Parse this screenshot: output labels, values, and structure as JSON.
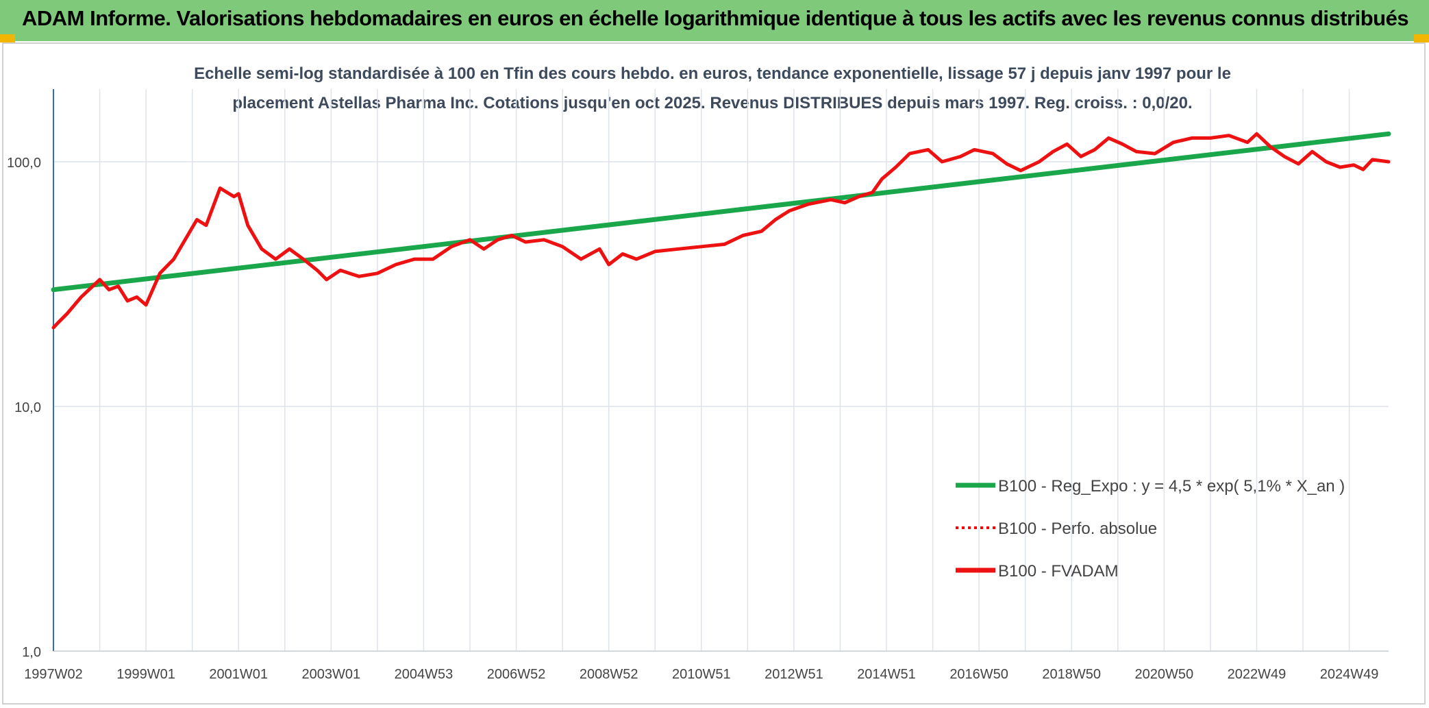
{
  "header": {
    "title": "ADAM Informe. Valorisations hebdomadaires en euros en échelle logarithmique identique à tous les actifs avec les revenus connus distribués"
  },
  "colors": {
    "header_bg": "#7fc97a",
    "corner_accent": "#f2b600",
    "trend_line": "#1aa64a",
    "perf_line": "#ff0000",
    "fvadam_line": "#ee1111"
  },
  "chart_data": {
    "type": "line",
    "title_line1": "Echelle semi-log standardisée à 100 en Tfin des cours hebdo. en euros, tendance exponentielle, lissage 57 j depuis janv 1997 pour le",
    "title_line2": "placement Astellas Pharma Inc. Cotations jusqu'en oct 2025. Revenus DISTRIBUES depuis mars 1997. Reg. croiss. : 0,0/20.",
    "y_scale": "log",
    "ylim": [
      1,
      180
    ],
    "xlim": [
      1997.0,
      2025.85
    ],
    "grid": true,
    "legend_position": "right-lower",
    "y_ticks": [
      {
        "value": 1,
        "label": "1,0"
      },
      {
        "value": 10,
        "label": "10,0"
      },
      {
        "value": 100,
        "label": "100,0"
      }
    ],
    "x_ticks": [
      {
        "value": 1997.0,
        "label": "1997W02"
      },
      {
        "value": 1999.0,
        "label": "1999W01"
      },
      {
        "value": 2001.0,
        "label": "2001W01"
      },
      {
        "value": 2003.0,
        "label": "2003W01"
      },
      {
        "value": 2005.0,
        "label": "2004W53"
      },
      {
        "value": 2007.0,
        "label": "2006W52"
      },
      {
        "value": 2009.0,
        "label": "2008W52"
      },
      {
        "value": 2011.0,
        "label": "2010W51"
      },
      {
        "value": 2013.0,
        "label": "2012W51"
      },
      {
        "value": 2015.0,
        "label": "2014W51"
      },
      {
        "value": 2017.0,
        "label": "2016W50"
      },
      {
        "value": 2019.0,
        "label": "2018W50"
      },
      {
        "value": 2021.0,
        "label": "2020W50"
      },
      {
        "value": 2023.0,
        "label": "2022W49"
      },
      {
        "value": 2025.0,
        "label": "2024W49"
      }
    ],
    "legend": [
      {
        "label": "B100 - Reg_Expo : y = 4,5 * exp( 5,1% *  X_an )",
        "style": "solid-green"
      },
      {
        "label": "B100 - Perfo. absolue",
        "style": "dotted-red"
      },
      {
        "label": "B100 - FVADAM",
        "style": "solid-red"
      }
    ],
    "series": [
      {
        "name": "B100 - Reg_Expo : y = 4,5 * exp( 5,1% *  X_an )",
        "x": [
          1997.0,
          2025.85
        ],
        "values": [
          30.0,
          130.0
        ]
      },
      {
        "name": "B100 - FVADAM",
        "x": [
          1997.0,
          1997.1,
          1997.3,
          1997.6,
          1998.0,
          1998.2,
          1998.4,
          1998.6,
          1998.8,
          1999.0,
          1999.3,
          1999.6,
          1999.9,
          2000.1,
          2000.3,
          2000.6,
          2000.9,
          2001.0,
          2001.2,
          2001.5,
          2001.8,
          2002.1,
          2002.4,
          2002.7,
          2002.9,
          2003.2,
          2003.6,
          2004.0,
          2004.4,
          2004.8,
          2005.2,
          2005.6,
          2006.0,
          2006.3,
          2006.6,
          2006.9,
          2007.2,
          2007.6,
          2008.0,
          2008.4,
          2008.8,
          2009.0,
          2009.3,
          2009.6,
          2010.0,
          2010.5,
          2011.0,
          2011.5,
          2011.9,
          2012.3,
          2012.6,
          2012.9,
          2013.3,
          2013.8,
          2014.1,
          2014.4,
          2014.7,
          2014.9,
          2015.2,
          2015.5,
          2015.9,
          2016.2,
          2016.6,
          2016.9,
          2017.3,
          2017.6,
          2017.9,
          2018.3,
          2018.6,
          2018.9,
          2019.2,
          2019.5,
          2019.8,
          2020.1,
          2020.4,
          2020.8,
          2021.2,
          2021.6,
          2022.0,
          2022.4,
          2022.8,
          2023.0,
          2023.3,
          2023.6,
          2023.9,
          2024.2,
          2024.5,
          2024.8,
          2025.1,
          2025.3,
          2025.5,
          2025.85
        ],
        "values": [
          21,
          22,
          24,
          28,
          33,
          30,
          31,
          27,
          28,
          26,
          35,
          40,
          50,
          58,
          55,
          78,
          72,
          74,
          55,
          44,
          40,
          44,
          40,
          36,
          33,
          36,
          34,
          35,
          38,
          40,
          40,
          45,
          48,
          44,
          48,
          50,
          47,
          48,
          45,
          40,
          44,
          38,
          42,
          40,
          43,
          44,
          45,
          46,
          50,
          52,
          58,
          63,
          67,
          70,
          68,
          72,
          75,
          85,
          95,
          108,
          112,
          100,
          105,
          112,
          108,
          98,
          92,
          100,
          110,
          118,
          105,
          112,
          125,
          118,
          110,
          108,
          120,
          125,
          125,
          128,
          120,
          130,
          115,
          105,
          98,
          110,
          100,
          95,
          97,
          93,
          102,
          100
        ]
      }
    ]
  }
}
